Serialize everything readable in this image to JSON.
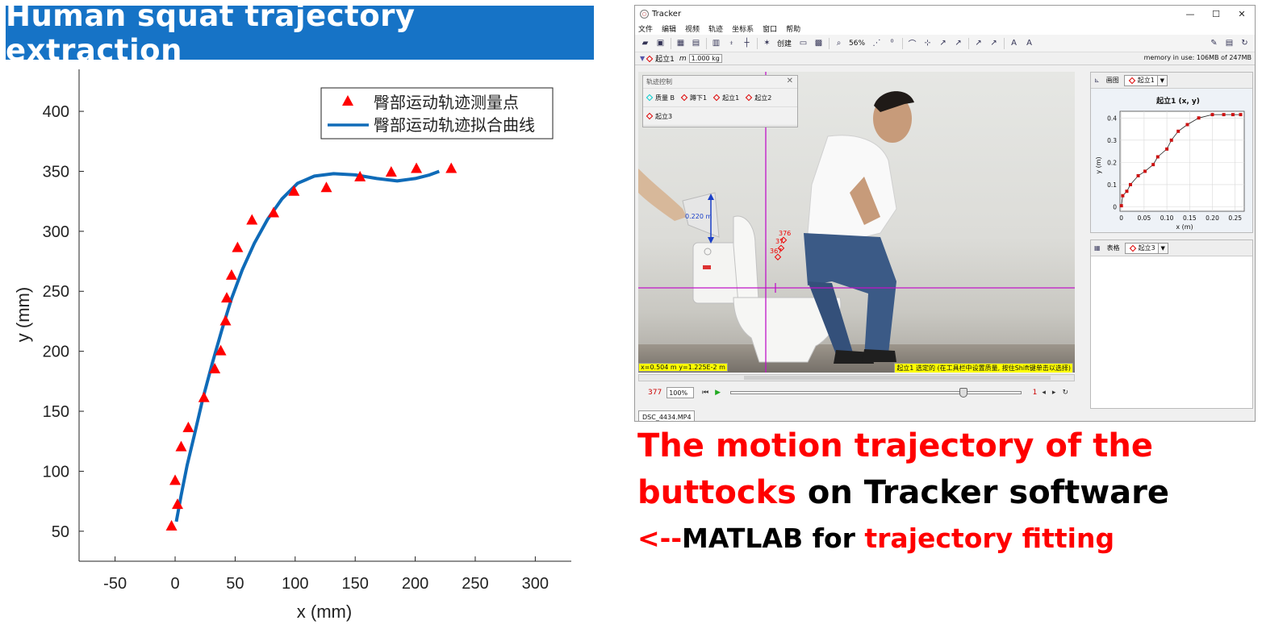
{
  "banner": {
    "title": "Human squat trajectory extraction"
  },
  "chart_data": {
    "type": "scatter",
    "title": "",
    "xlabel": "x (mm)",
    "ylabel": "y (mm)",
    "xlim": [
      -80,
      330
    ],
    "ylim": [
      25,
      435
    ],
    "xticks": [
      -50,
      0,
      50,
      100,
      150,
      200,
      250,
      300
    ],
    "yticks": [
      50,
      100,
      150,
      200,
      250,
      300,
      350,
      400
    ],
    "legend_position": "top-right",
    "series": [
      {
        "name": "臀部运动轨迹测量点",
        "marker": "triangle",
        "color": "#ff0000",
        "points": [
          [
            -3,
            54
          ],
          [
            2,
            72
          ],
          [
            0,
            92
          ],
          [
            5,
            120
          ],
          [
            11,
            136
          ],
          [
            24,
            161
          ],
          [
            33,
            185
          ],
          [
            38,
            200
          ],
          [
            42,
            225
          ],
          [
            43,
            244
          ],
          [
            47,
            263
          ],
          [
            52,
            286
          ],
          [
            64,
            309
          ],
          [
            82,
            315
          ],
          [
            99,
            333
          ],
          [
            126,
            336
          ],
          [
            154,
            345
          ],
          [
            180,
            349
          ],
          [
            201,
            352
          ],
          [
            230,
            352
          ]
        ]
      },
      {
        "name": "臀部运动轨迹拟合曲线",
        "marker": "line",
        "color": "#0f6bb8",
        "points": [
          [
            1,
            58
          ],
          [
            5,
            80
          ],
          [
            10,
            105
          ],
          [
            16,
            130
          ],
          [
            23,
            160
          ],
          [
            31,
            190
          ],
          [
            39,
            218
          ],
          [
            47,
            244
          ],
          [
            56,
            268
          ],
          [
            66,
            290
          ],
          [
            77,
            310
          ],
          [
            89,
            327
          ],
          [
            102,
            340
          ],
          [
            116,
            346
          ],
          [
            132,
            348
          ],
          [
            150,
            347
          ],
          [
            168,
            344
          ],
          [
            185,
            342
          ],
          [
            200,
            344
          ],
          [
            212,
            347
          ],
          [
            220,
            350
          ]
        ]
      }
    ]
  },
  "tracker": {
    "window_title": "Tracker",
    "window_controls": [
      "—",
      "☐",
      "✕"
    ],
    "menu": [
      "文件",
      "编辑",
      "视频",
      "轨迹",
      "坐标系",
      "窗口",
      "帮助"
    ],
    "toolbar": {
      "create_label": "创建",
      "zoom_label": "56%"
    },
    "track_bar": {
      "track_name": "起立1",
      "mass_symbol": "m",
      "mass_value": "1.000 kg",
      "memory": "memory in use: 106MB of 247MB"
    },
    "track_control": {
      "title": "轨迹控制",
      "items": [
        "质量 B",
        "蹲下1",
        "起立1",
        "起立2",
        "起立3"
      ]
    },
    "video": {
      "calibration_label": "0.220 m",
      "point_labels": [
        "376",
        "37",
        "367"
      ],
      "coord_readout": "x=0.504 m  y=1.225E-2 m",
      "status_readout": "起立1 选定的 (在工具栏中设置质量, 按住Shift键单击以选择)"
    },
    "player": {
      "frame": "377",
      "zoom": "100%",
      "step": "1"
    },
    "file_tab": "DSC_4434.MP4",
    "plot_panel": {
      "tab_label": "画图",
      "track": "起立1",
      "plot_title": "起立1 (x, y)",
      "xlabel": "x (m)",
      "ylabel": "y (m)",
      "xticks": [
        "0",
        "0.05",
        "0.10",
        "0.15",
        "0.20",
        "0.25"
      ],
      "yticks": [
        "0",
        "0.1",
        "0.2",
        "0.3",
        "0.4"
      ],
      "points": [
        [
          0.0,
          0.005
        ],
        [
          0.003,
          0.05
        ],
        [
          0.012,
          0.07
        ],
        [
          0.02,
          0.1
        ],
        [
          0.037,
          0.14
        ],
        [
          0.052,
          0.16
        ],
        [
          0.07,
          0.19
        ],
        [
          0.08,
          0.225
        ],
        [
          0.1,
          0.26
        ],
        [
          0.11,
          0.3
        ],
        [
          0.125,
          0.34
        ],
        [
          0.145,
          0.37
        ],
        [
          0.17,
          0.4
        ],
        [
          0.2,
          0.415
        ],
        [
          0.225,
          0.415
        ],
        [
          0.245,
          0.415
        ],
        [
          0.262,
          0.415
        ]
      ]
    },
    "table_panel": {
      "tab_label": "表格",
      "track": "起立3"
    }
  },
  "caption": {
    "line1": "The motion trajectory of the",
    "line2a": "buttocks",
    "line2b": " on Tracker software",
    "line3a": "<--",
    "line3b": "MATLAB for ",
    "line3c": "trajectory fitting"
  }
}
